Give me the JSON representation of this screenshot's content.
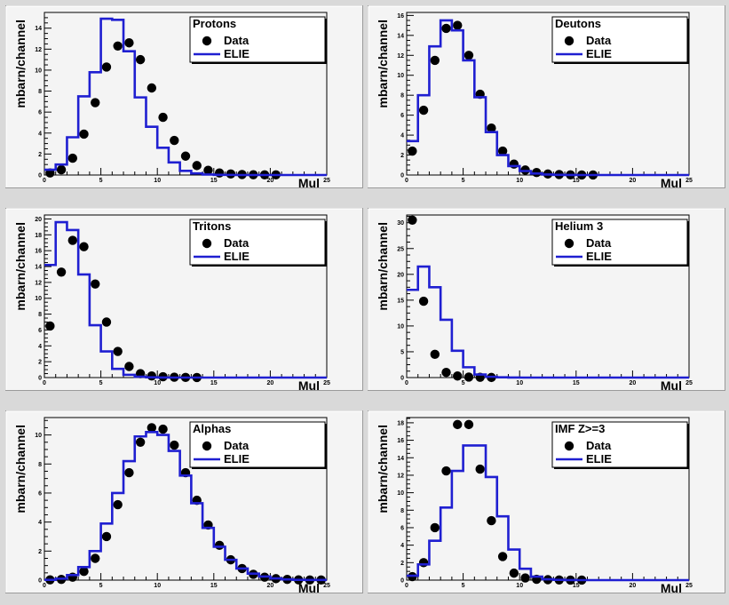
{
  "chart_data": [
    {
      "type": "line",
      "title": "Protons",
      "xlabel": "Mul",
      "ylabel": "mbarn/channel",
      "xlim": [
        0,
        25
      ],
      "ylim": [
        0,
        15.5
      ],
      "xticks": [
        0,
        5,
        10,
        15,
        20,
        25
      ],
      "yticks": [
        0,
        2,
        4,
        6,
        8,
        10,
        12,
        14
      ],
      "legend_position": "top-right",
      "series": [
        {
          "name": "Data",
          "style": "points",
          "x": [
            0,
            1,
            2,
            3,
            4,
            5,
            6,
            7,
            8,
            9,
            10,
            11,
            12,
            13,
            14,
            15,
            16,
            17,
            18,
            19,
            20
          ],
          "y": [
            0.2,
            0.5,
            1.6,
            3.9,
            6.9,
            10.3,
            12.3,
            12.6,
            11.0,
            8.3,
            5.5,
            3.3,
            1.8,
            0.9,
            0.45,
            0.2,
            0.1,
            0.05,
            0.03,
            0.02,
            0.02
          ]
        },
        {
          "name": "ELIE",
          "style": "step",
          "x": [
            0,
            1,
            2,
            3,
            4,
            5,
            6,
            7,
            8,
            9,
            10,
            11,
            12,
            13,
            14,
            15,
            16,
            17,
            18,
            19,
            20,
            21,
            22,
            23,
            24
          ],
          "y": [
            0.5,
            1.0,
            3.6,
            7.5,
            9.8,
            14.9,
            14.8,
            11.8,
            7.4,
            4.6,
            2.6,
            1.2,
            0.4,
            0.15,
            0.05,
            0.02,
            0.01,
            0,
            0,
            0,
            0,
            0,
            0,
            0,
            0
          ]
        }
      ]
    },
    {
      "type": "line",
      "title": "Deutons",
      "xlabel": "Mul",
      "ylabel": "mbarn/channel",
      "xlim": [
        0,
        25
      ],
      "ylim": [
        0,
        16.3
      ],
      "xticks": [
        0,
        5,
        10,
        15,
        20,
        25
      ],
      "yticks": [
        0,
        2,
        4,
        6,
        8,
        10,
        12,
        14,
        16
      ],
      "legend_position": "top-right",
      "series": [
        {
          "name": "Data",
          "style": "points",
          "x": [
            0,
            1,
            2,
            3,
            4,
            5,
            6,
            7,
            8,
            9,
            10,
            11,
            12,
            13,
            14,
            15,
            16
          ],
          "y": [
            2.4,
            6.5,
            11.5,
            14.7,
            15.0,
            12.0,
            8.1,
            4.7,
            2.4,
            1.1,
            0.5,
            0.25,
            0.1,
            0.05,
            0.02,
            0.01,
            0.01
          ]
        },
        {
          "name": "ELIE",
          "style": "step",
          "x": [
            0,
            1,
            2,
            3,
            4,
            5,
            6,
            7,
            8,
            9,
            10,
            11,
            12,
            13,
            14,
            15,
            16,
            17,
            18,
            19,
            20,
            21,
            22,
            23,
            24
          ],
          "y": [
            3.4,
            8.0,
            12.9,
            15.5,
            14.5,
            11.5,
            7.8,
            4.3,
            2.0,
            0.9,
            0.4,
            0.15,
            0.05,
            0.02,
            0.01,
            0,
            0,
            0,
            0,
            0,
            0,
            0,
            0,
            0,
            0
          ]
        }
      ]
    },
    {
      "type": "line",
      "title": "Tritons",
      "xlabel": "Mul",
      "ylabel": "mbarn/channel",
      "xlim": [
        0,
        25
      ],
      "ylim": [
        0,
        20.5
      ],
      "xticks": [
        0,
        5,
        10,
        15,
        20,
        25
      ],
      "yticks": [
        0,
        2,
        4,
        6,
        8,
        10,
        12,
        14,
        16,
        18,
        20
      ],
      "legend_position": "top-right",
      "series": [
        {
          "name": "Data",
          "style": "points",
          "x": [
            0,
            1,
            2,
            3,
            4,
            5,
            6,
            7,
            8,
            9,
            10,
            11,
            12,
            13
          ],
          "y": [
            6.5,
            13.3,
            17.3,
            16.5,
            11.8,
            7.0,
            3.3,
            1.4,
            0.5,
            0.2,
            0.1,
            0.05,
            0.02,
            0.01
          ]
        },
        {
          "name": "ELIE",
          "style": "step",
          "x": [
            0,
            1,
            2,
            3,
            4,
            5,
            6,
            7,
            8,
            9,
            10,
            11,
            12,
            13,
            14,
            15,
            16,
            17,
            18,
            19,
            20,
            21,
            22,
            23,
            24
          ],
          "y": [
            14.2,
            19.6,
            18.6,
            13.0,
            6.6,
            3.3,
            1.1,
            0.35,
            0.1,
            0.03,
            0.01,
            0,
            0,
            0,
            0,
            0,
            0,
            0,
            0,
            0,
            0,
            0,
            0,
            0,
            0
          ]
        }
      ]
    },
    {
      "type": "line",
      "title": "Helium 3",
      "xlabel": "Mul",
      "ylabel": "mbarn/channel",
      "xlim": [
        0,
        25
      ],
      "ylim": [
        0,
        31.5
      ],
      "xticks": [
        0,
        5,
        10,
        15,
        20,
        25
      ],
      "yticks": [
        0,
        5,
        10,
        15,
        20,
        25,
        30
      ],
      "legend_position": "top-right",
      "series": [
        {
          "name": "Data",
          "style": "points",
          "x": [
            0,
            1,
            2,
            3,
            4,
            5,
            6,
            7
          ],
          "y": [
            30.5,
            14.8,
            4.5,
            1.0,
            0.3,
            0.1,
            0.05,
            0.02
          ]
        },
        {
          "name": "ELIE",
          "style": "step",
          "x": [
            0,
            1,
            2,
            3,
            4,
            5,
            6,
            7,
            8,
            9,
            10,
            11,
            12,
            13,
            14,
            15,
            16,
            17,
            18,
            19,
            20,
            21,
            22,
            23,
            24
          ],
          "y": [
            17.0,
            21.5,
            17.5,
            11.2,
            5.2,
            2.0,
            0.6,
            0.15,
            0.05,
            0.01,
            0,
            0,
            0,
            0,
            0,
            0,
            0,
            0,
            0,
            0,
            0,
            0,
            0,
            0,
            0
          ]
        }
      ]
    },
    {
      "type": "line",
      "title": "Alphas",
      "xlabel": "Mul",
      "ylabel": "mbarn/channel",
      "xlim": [
        0,
        25
      ],
      "ylim": [
        0,
        11.2
      ],
      "xticks": [
        0,
        5,
        10,
        15,
        20,
        25
      ],
      "yticks": [
        0,
        2,
        4,
        6,
        8,
        10
      ],
      "legend_position": "top-right",
      "series": [
        {
          "name": "Data",
          "style": "points",
          "x": [
            0,
            1,
            2,
            3,
            4,
            5,
            6,
            7,
            8,
            9,
            10,
            11,
            12,
            13,
            14,
            15,
            16,
            17,
            18,
            19,
            20,
            21,
            22,
            23,
            24
          ],
          "y": [
            0.02,
            0.05,
            0.2,
            0.6,
            1.5,
            3.0,
            5.2,
            7.4,
            9.5,
            10.5,
            10.4,
            9.3,
            7.4,
            5.5,
            3.8,
            2.4,
            1.4,
            0.8,
            0.4,
            0.2,
            0.1,
            0.05,
            0.02,
            0.01,
            0.01
          ]
        },
        {
          "name": "ELIE",
          "style": "step",
          "x": [
            0,
            1,
            2,
            3,
            4,
            5,
            6,
            7,
            8,
            9,
            10,
            11,
            12,
            13,
            14,
            15,
            16,
            17,
            18,
            19,
            20,
            21,
            22,
            23,
            24
          ],
          "y": [
            0.02,
            0.1,
            0.35,
            0.9,
            2.0,
            3.9,
            6.0,
            8.2,
            9.9,
            10.2,
            10.0,
            8.9,
            7.2,
            5.3,
            3.6,
            2.3,
            1.4,
            0.8,
            0.45,
            0.25,
            0.12,
            0.05,
            0.02,
            0.01,
            0.01
          ]
        }
      ]
    },
    {
      "type": "line",
      "title": "IMF Z>=3",
      "xlabel": "Mul",
      "ylabel": "mbarn/channel",
      "xlim": [
        0,
        25
      ],
      "ylim": [
        0,
        18.6
      ],
      "xticks": [
        0,
        5,
        10,
        15,
        20,
        25
      ],
      "yticks": [
        0,
        2,
        4,
        6,
        8,
        10,
        12,
        14,
        16,
        18
      ],
      "legend_position": "top-right",
      "series": [
        {
          "name": "Data",
          "style": "points",
          "x": [
            0,
            1,
            2,
            3,
            4,
            5,
            6,
            7,
            8,
            9,
            10,
            11,
            12,
            13,
            14,
            15
          ],
          "y": [
            0.4,
            2.0,
            6.0,
            12.5,
            17.8,
            17.8,
            12.7,
            6.8,
            2.7,
            0.8,
            0.25,
            0.1,
            0.05,
            0.02,
            0.01,
            0.01
          ]
        },
        {
          "name": "ELIE",
          "style": "step",
          "x": [
            0,
            1,
            2,
            3,
            4,
            5,
            6,
            7,
            8,
            9,
            10,
            11,
            12,
            13,
            14,
            15,
            16,
            17,
            18,
            19,
            20,
            21,
            22,
            23,
            24
          ],
          "y": [
            0.5,
            1.8,
            4.5,
            8.3,
            12.5,
            15.4,
            15.4,
            11.8,
            7.3,
            3.5,
            1.3,
            0.4,
            0.1,
            0.03,
            0.01,
            0,
            0,
            0,
            0,
            0,
            0,
            0,
            0,
            0,
            0
          ]
        }
      ]
    }
  ]
}
